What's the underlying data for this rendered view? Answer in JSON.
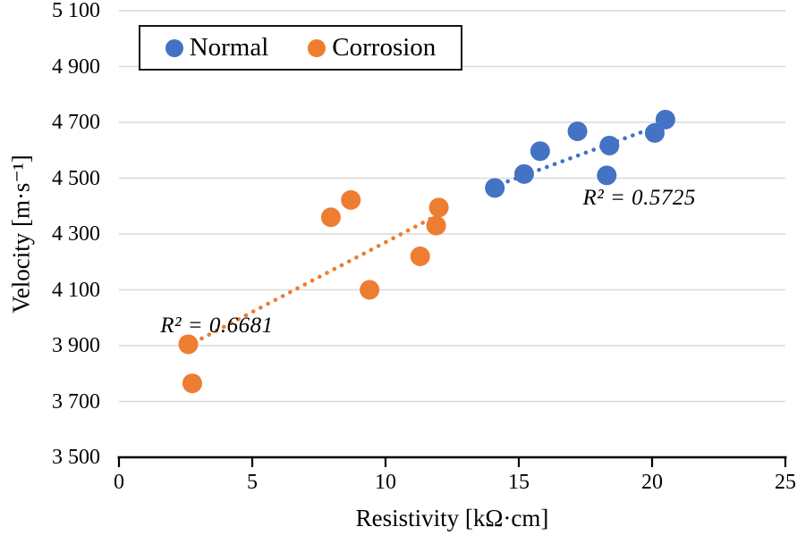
{
  "chart_data": {
    "type": "scatter",
    "title": "",
    "xlabel": "Resistivity [kΩ·cm]",
    "ylabel": "Velocity [m·s⁻¹]",
    "xlim": [
      0,
      25
    ],
    "ylim": [
      3500,
      5100
    ],
    "x_tick_values": [
      0,
      5,
      10,
      15,
      20,
      25
    ],
    "x_tick_labels": [
      "0",
      "5",
      "10",
      "15",
      "20",
      "25"
    ],
    "y_tick_values": [
      3500,
      3700,
      3900,
      4100,
      4300,
      4500,
      4700,
      4900,
      5100
    ],
    "y_tick_labels": [
      "3 500",
      "3 700",
      "3 900",
      "4 100",
      "4 300",
      "4 500",
      "4 700",
      "4 900",
      "5 100"
    ],
    "grid": "horizontal-only",
    "gridline_color": "#d9d9d9",
    "axis_color": "#000000",
    "legend_position": "top-inside-bordered-box",
    "series": [
      {
        "name": "Normal",
        "color": "#4472C4",
        "marker": "circle",
        "points": [
          [
            14.1,
            4465
          ],
          [
            15.2,
            4515
          ],
          [
            15.8,
            4597
          ],
          [
            17.2,
            4668
          ],
          [
            18.3,
            4510
          ],
          [
            18.4,
            4617
          ],
          [
            20.1,
            4662
          ],
          [
            20.5,
            4710
          ]
        ],
        "trendline": {
          "style": "dotted",
          "from": [
            14.0,
            4468
          ],
          "to": [
            20.6,
            4700
          ]
        },
        "r2_label": "R² = 0.5725",
        "r2_anchor": [
          17.4,
          4428
        ]
      },
      {
        "name": "Corrosion",
        "color": "#ED7D31",
        "marker": "circle",
        "points": [
          [
            2.6,
            3905
          ],
          [
            2.75,
            3765
          ],
          [
            7.95,
            4360
          ],
          [
            8.7,
            4422
          ],
          [
            9.4,
            4100
          ],
          [
            11.3,
            4220
          ],
          [
            11.9,
            4330
          ],
          [
            12.0,
            4395
          ]
        ],
        "trendline": {
          "style": "dotted",
          "from": [
            2.55,
            3898
          ],
          "to": [
            11.95,
            4368
          ]
        },
        "r2_label": "R² = 0.6681",
        "r2_anchor": [
          1.55,
          3972
        ]
      }
    ]
  }
}
